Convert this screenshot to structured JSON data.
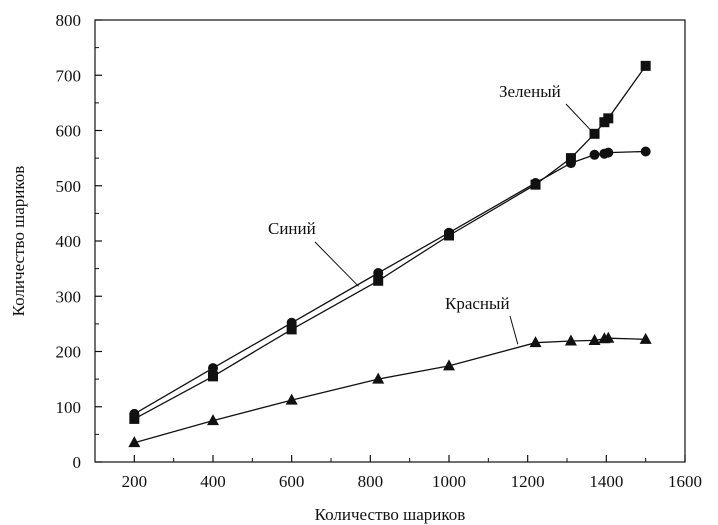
{
  "chart_data": {
    "type": "line",
    "xlabel": "Количество шариков",
    "ylabel": "Количество шариков",
    "xlim": [
      100,
      1600
    ],
    "ylim": [
      0,
      800
    ],
    "x_ticks": [
      200,
      400,
      600,
      800,
      1000,
      1200,
      1400,
      1600
    ],
    "y_ticks": [
      0,
      100,
      200,
      300,
      400,
      500,
      600,
      700,
      800
    ],
    "grid": false,
    "legend": "none",
    "series": [
      {
        "name": "Синий",
        "marker": "circle",
        "color": "#111111",
        "points": [
          [
            200,
            87
          ],
          [
            400,
            170
          ],
          [
            600,
            252
          ],
          [
            820,
            342
          ],
          [
            1000,
            415
          ],
          [
            1220,
            505
          ],
          [
            1310,
            541
          ],
          [
            1370,
            556
          ],
          [
            1395,
            558
          ],
          [
            1405,
            560
          ],
          [
            1500,
            562
          ]
        ]
      },
      {
        "name": "Зеленый",
        "marker": "square",
        "color": "#111111",
        "points": [
          [
            200,
            78
          ],
          [
            400,
            155
          ],
          [
            600,
            240
          ],
          [
            820,
            328
          ],
          [
            1000,
            410
          ],
          [
            1220,
            502
          ],
          [
            1310,
            550
          ],
          [
            1370,
            594
          ],
          [
            1395,
            615
          ],
          [
            1405,
            622
          ],
          [
            1500,
            717
          ]
        ]
      },
      {
        "name": "Красный",
        "marker": "triangle",
        "color": "#111111",
        "points": [
          [
            200,
            35
          ],
          [
            400,
            75
          ],
          [
            600,
            112
          ],
          [
            820,
            150
          ],
          [
            1000,
            174
          ],
          [
            1220,
            216
          ],
          [
            1310,
            219
          ],
          [
            1370,
            220
          ],
          [
            1395,
            223
          ],
          [
            1405,
            224
          ],
          [
            1500,
            222
          ]
        ]
      }
    ],
    "annotations": [
      {
        "text": "Зеленый",
        "series": "Зеленый"
      },
      {
        "text": "Синий",
        "series": "Синий"
      },
      {
        "text": "Красный",
        "series": "Красный"
      }
    ]
  }
}
